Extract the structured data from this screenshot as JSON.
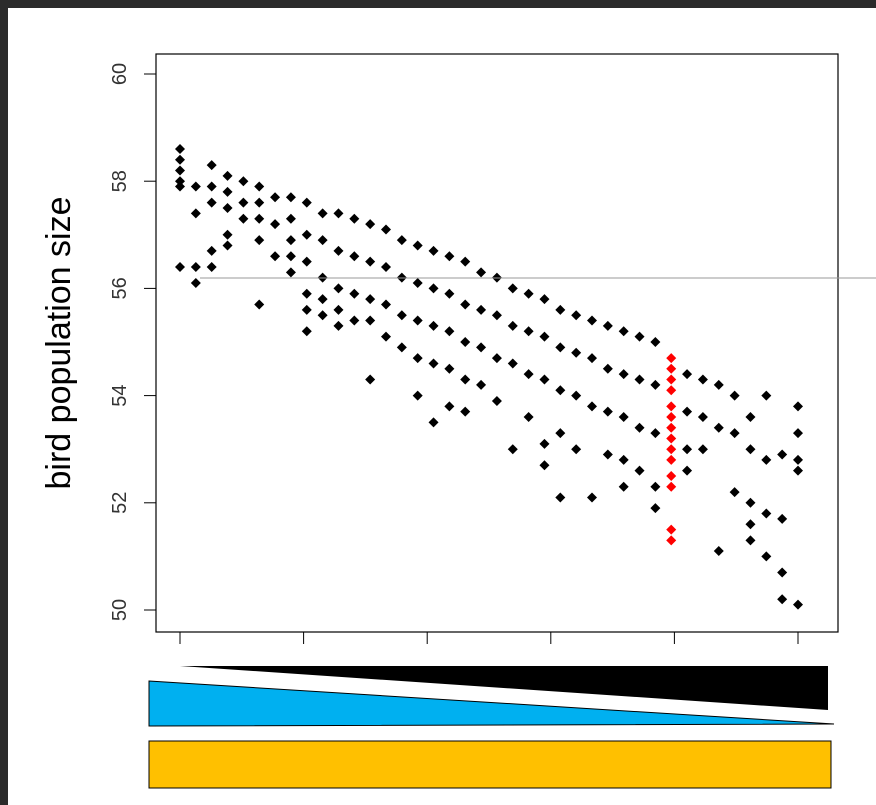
{
  "chart_data": {
    "type": "scatter",
    "title": "",
    "xlabel": "",
    "ylabel": "bird population size",
    "ylim": [
      50,
      60
    ],
    "yticks": [
      "50",
      "52",
      "54",
      "56",
      "58",
      "60"
    ],
    "xtick_count": 6,
    "grid": false,
    "legend": "none",
    "colors": {
      "points": "#000000",
      "highlight": "#ff0000",
      "wedge_black": "#000000",
      "wedge_blue": "#00b0f0",
      "bar_yellow": "#ffc000"
    },
    "series": [
      {
        "color": "#000000",
        "points": [
          [
            1,
            58.6
          ],
          [
            1,
            58.4
          ],
          [
            1,
            58.2
          ],
          [
            1,
            58.0
          ],
          [
            1,
            57.9
          ],
          [
            1,
            56.4
          ],
          [
            1.8,
            57.9
          ],
          [
            1.8,
            57.4
          ],
          [
            1.8,
            56.4
          ],
          [
            1.8,
            56.1
          ],
          [
            2.6,
            58.3
          ],
          [
            2.6,
            57.9
          ],
          [
            2.6,
            57.6
          ],
          [
            2.6,
            56.7
          ],
          [
            2.6,
            56.4
          ],
          [
            3.4,
            58.1
          ],
          [
            3.4,
            57.8
          ],
          [
            3.4,
            57.5
          ],
          [
            3.4,
            57.0
          ],
          [
            3.4,
            56.8
          ],
          [
            4.2,
            58.0
          ],
          [
            4.2,
            57.6
          ],
          [
            4.2,
            57.3
          ],
          [
            5,
            57.9
          ],
          [
            5,
            57.6
          ],
          [
            5,
            57.3
          ],
          [
            5,
            56.9
          ],
          [
            5,
            55.7
          ],
          [
            5.8,
            57.7
          ],
          [
            5.8,
            57.2
          ],
          [
            5.8,
            56.6
          ],
          [
            6.6,
            57.7
          ],
          [
            6.6,
            57.3
          ],
          [
            6.6,
            56.9
          ],
          [
            6.6,
            56.6
          ],
          [
            6.6,
            56.3
          ],
          [
            7.4,
            57.6
          ],
          [
            7.4,
            57.0
          ],
          [
            7.4,
            56.5
          ],
          [
            7.4,
            55.9
          ],
          [
            7.4,
            55.6
          ],
          [
            7.4,
            55.2
          ],
          [
            8.2,
            57.4
          ],
          [
            8.2,
            56.9
          ],
          [
            8.2,
            56.2
          ],
          [
            8.2,
            55.8
          ],
          [
            8.2,
            55.5
          ],
          [
            9,
            57.4
          ],
          [
            9,
            56.7
          ],
          [
            9,
            56.0
          ],
          [
            9,
            55.6
          ],
          [
            9,
            55.3
          ],
          [
            9.8,
            57.3
          ],
          [
            9.8,
            56.6
          ],
          [
            9.8,
            55.9
          ],
          [
            9.8,
            55.4
          ],
          [
            10.6,
            57.2
          ],
          [
            10.6,
            56.5
          ],
          [
            10.6,
            55.8
          ],
          [
            10.6,
            55.4
          ],
          [
            10.6,
            54.3
          ],
          [
            11.4,
            57.1
          ],
          [
            11.4,
            56.4
          ],
          [
            11.4,
            55.7
          ],
          [
            11.4,
            55.1
          ],
          [
            12.2,
            56.9
          ],
          [
            12.2,
            56.2
          ],
          [
            12.2,
            55.5
          ],
          [
            12.2,
            54.9
          ],
          [
            13,
            56.8
          ],
          [
            13,
            56.1
          ],
          [
            13,
            55.4
          ],
          [
            13,
            54.7
          ],
          [
            13,
            54.0
          ],
          [
            13.8,
            56.7
          ],
          [
            13.8,
            56.0
          ],
          [
            13.8,
            55.3
          ],
          [
            13.8,
            54.6
          ],
          [
            13.8,
            53.5
          ],
          [
            14.6,
            56.6
          ],
          [
            14.6,
            55.9
          ],
          [
            14.6,
            55.2
          ],
          [
            14.6,
            54.5
          ],
          [
            14.6,
            53.8
          ],
          [
            15.4,
            56.5
          ],
          [
            15.4,
            55.7
          ],
          [
            15.4,
            55.0
          ],
          [
            15.4,
            54.3
          ],
          [
            15.4,
            53.7
          ],
          [
            16.2,
            56.3
          ],
          [
            16.2,
            55.6
          ],
          [
            16.2,
            54.9
          ],
          [
            16.2,
            54.2
          ],
          [
            17,
            56.2
          ],
          [
            17,
            55.5
          ],
          [
            17,
            54.7
          ],
          [
            17,
            53.9
          ],
          [
            17.8,
            56.0
          ],
          [
            17.8,
            55.3
          ],
          [
            17.8,
            54.6
          ],
          [
            17.8,
            53.0
          ],
          [
            18.6,
            55.9
          ],
          [
            18.6,
            55.2
          ],
          [
            18.6,
            54.4
          ],
          [
            18.6,
            53.6
          ],
          [
            19.4,
            55.8
          ],
          [
            19.4,
            55.1
          ],
          [
            19.4,
            54.3
          ],
          [
            19.4,
            53.1
          ],
          [
            19.4,
            52.7
          ],
          [
            20.2,
            55.6
          ],
          [
            20.2,
            54.9
          ],
          [
            20.2,
            54.1
          ],
          [
            20.2,
            53.3
          ],
          [
            20.2,
            52.1
          ],
          [
            21,
            55.5
          ],
          [
            21,
            54.8
          ],
          [
            21,
            54.0
          ],
          [
            21,
            53.0
          ],
          [
            21.8,
            55.4
          ],
          [
            21.8,
            54.7
          ],
          [
            21.8,
            53.8
          ],
          [
            21.8,
            52.1
          ],
          [
            22.6,
            55.3
          ],
          [
            22.6,
            54.5
          ],
          [
            22.6,
            53.7
          ],
          [
            22.6,
            52.9
          ],
          [
            23.4,
            55.2
          ],
          [
            23.4,
            54.4
          ],
          [
            23.4,
            53.6
          ],
          [
            23.4,
            52.8
          ],
          [
            23.4,
            52.3
          ],
          [
            24.2,
            55.1
          ],
          [
            24.2,
            54.3
          ],
          [
            24.2,
            53.4
          ],
          [
            24.2,
            52.6
          ],
          [
            25,
            55.0
          ],
          [
            25,
            54.2
          ],
          [
            25,
            53.3
          ],
          [
            25,
            52.3
          ],
          [
            25,
            51.9
          ],
          [
            26.6,
            54.4
          ],
          [
            26.6,
            53.7
          ],
          [
            26.6,
            53.0
          ],
          [
            26.6,
            52.6
          ],
          [
            27.4,
            54.3
          ],
          [
            27.4,
            53.6
          ],
          [
            27.4,
            53.0
          ],
          [
            28.2,
            54.2
          ],
          [
            28.2,
            53.4
          ],
          [
            28.2,
            51.1
          ],
          [
            29,
            54.0
          ],
          [
            29,
            53.3
          ],
          [
            29,
            52.2
          ],
          [
            29.8,
            53.6
          ],
          [
            29.8,
            53.0
          ],
          [
            29.8,
            52.0
          ],
          [
            29.8,
            51.6
          ],
          [
            29.8,
            51.3
          ],
          [
            30.6,
            54.0
          ],
          [
            30.6,
            52.8
          ],
          [
            30.6,
            51.8
          ],
          [
            30.6,
            51.0
          ],
          [
            31.4,
            52.9
          ],
          [
            31.4,
            50.7
          ],
          [
            31.4,
            50.2
          ],
          [
            31.4,
            51.7
          ],
          [
            32.2,
            53.8
          ],
          [
            32.2,
            53.3
          ],
          [
            32.2,
            52.8
          ],
          [
            32.2,
            52.6
          ],
          [
            32.2,
            50.1
          ]
        ]
      },
      {
        "color": "#ff0000",
        "points": [
          [
            25.8,
            54.7
          ],
          [
            25.8,
            54.5
          ],
          [
            25.8,
            54.3
          ],
          [
            25.8,
            54.1
          ],
          [
            25.8,
            53.8
          ],
          [
            25.8,
            53.6
          ],
          [
            25.8,
            53.4
          ],
          [
            25.8,
            53.2
          ],
          [
            25.8,
            53.0
          ],
          [
            25.8,
            52.8
          ],
          [
            25.8,
            52.5
          ],
          [
            25.8,
            52.3
          ],
          [
            25.8,
            51.5
          ],
          [
            25.8,
            51.3
          ]
        ]
      }
    ]
  },
  "legend_graphics": {
    "top": "black-and-blue-wedges",
    "bottom": "yellow-bar"
  }
}
